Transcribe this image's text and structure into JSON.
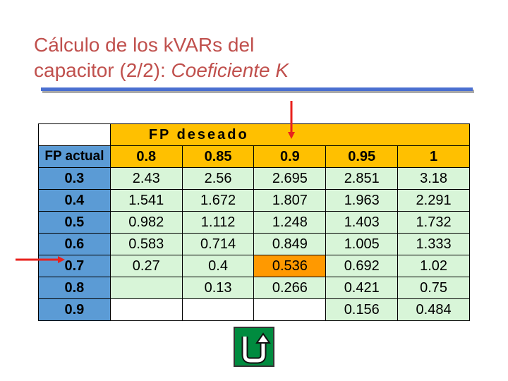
{
  "title": {
    "line1": "Cálculo de los kVARs del",
    "line2_plain": "capacitor (2/2): ",
    "line2_emph": "Coeficiente K"
  },
  "table": {
    "header_label": "FP deseado",
    "rowhead_label": "FP actual",
    "columns": [
      "0.8",
      "0.85",
      "0.9",
      "0.95",
      "1"
    ],
    "rows": [
      {
        "fp": "0.3",
        "values": [
          "2.43",
          "2.56",
          "2.695",
          "2.851",
          "3.18"
        ]
      },
      {
        "fp": "0.4",
        "values": [
          "1.541",
          "1.672",
          "1.807",
          "1.963",
          "2.291"
        ]
      },
      {
        "fp": "0.5",
        "values": [
          "0.982",
          "1.112",
          "1.248",
          "1.403",
          "1.732"
        ]
      },
      {
        "fp": "0.6",
        "values": [
          "0.583",
          "0.714",
          "0.849",
          "1.005",
          "1.333"
        ]
      },
      {
        "fp": "0.7",
        "values": [
          "0.27",
          "0.4",
          "0.536",
          "0.692",
          "1.02"
        ]
      },
      {
        "fp": "0.8",
        "values": [
          "",
          "0.13",
          "0.266",
          "0.421",
          "0.75"
        ]
      },
      {
        "fp": "0.9",
        "values": [
          "",
          "",
          "",
          "0.156",
          "0.484"
        ]
      }
    ],
    "highlight": {
      "row": "0.7",
      "column": "0.9"
    }
  },
  "colors": {
    "title": "#c0504d",
    "header": "#ffc000",
    "rowhead": "#5b9bd5",
    "cell": "#d8f5d8",
    "highlight": "#ff9900",
    "arrow": "#e8221d",
    "home_button": "#008b3f"
  },
  "icons": {
    "home": "return-arrow-icon"
  }
}
